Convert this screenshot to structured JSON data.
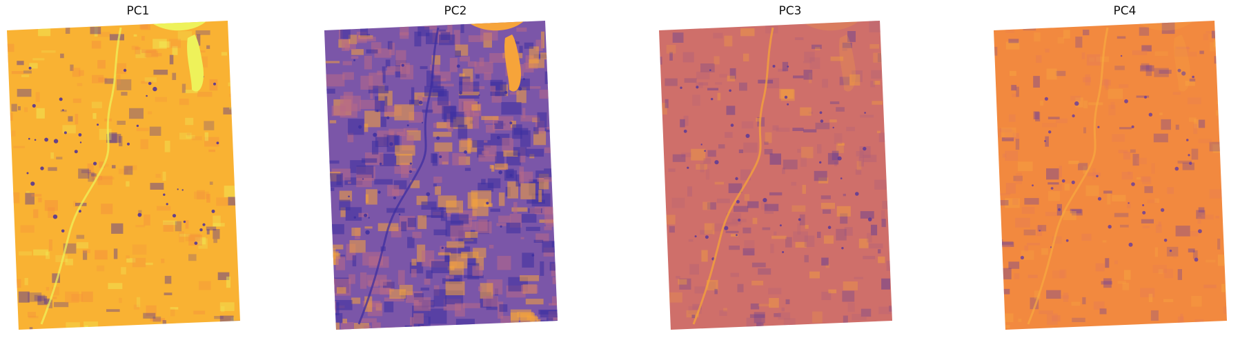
{
  "panels": [
    {
      "title": "PC1",
      "colors": {
        "base": "#f9b233",
        "low": "#4b2e9a",
        "high": "#eef25a",
        "mid": "#f48b3e"
      }
    },
    {
      "title": "PC2",
      "colors": {
        "base": "#7b56a8",
        "low": "#3d2fa0",
        "high": "#f6a43a",
        "mid": "#b86a86"
      }
    },
    {
      "title": "PC3",
      "colors": {
        "base": "#cf6f6a",
        "low": "#5a3a98",
        "high": "#f6a43a",
        "mid": "#b0607a"
      }
    },
    {
      "title": "PC4",
      "colors": {
        "base": "#f2893f",
        "low": "#6c3f9a",
        "high": "#f7a840",
        "mid": "#e47a58"
      }
    }
  ]
}
